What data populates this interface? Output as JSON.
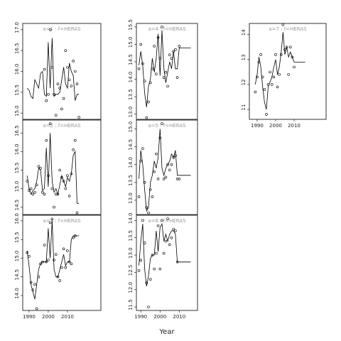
{
  "chart_data": [
    {
      "type": "line",
      "title": "a=1 : f=HERAS",
      "x": [
        1989,
        1990,
        1991,
        1992,
        1993,
        1994,
        1995,
        1996,
        1997,
        1998,
        1999,
        2000,
        2001,
        2002,
        2003,
        2004,
        2005,
        2006,
        2007,
        2008,
        2009,
        2010,
        2011,
        2012,
        2013,
        2014,
        2015,
        2016
      ],
      "xlim": [
        1986.7,
        2027.4
      ],
      "ylim": [
        14.85,
        17.15
      ],
      "yticks": [
        {
          "value": 15,
          "label": "15.0"
        },
        {
          "value": 15.5,
          "label": "15.5"
        },
        {
          "value": 16,
          "label": "16.0"
        },
        {
          "value": 16.5,
          "label": "16.5"
        },
        {
          "value": 17,
          "label": "17.0"
        }
      ],
      "series": [
        {
          "mode": "markers",
          "color": "#000000",
          "values": [
            null,
            null,
            null,
            null,
            null,
            null,
            null,
            null,
            null,
            16.05,
            15.3,
            15.45,
            17.0,
            16.1,
            15.45,
            14.95,
            15.7,
            15.6,
            15.1,
            15.35,
            16.5,
            16.1,
            15.8,
            15.65,
            16.25,
            16.0,
            15.7,
            14.9
          ]
        },
        {
          "mode": "lines",
          "color": "#000000",
          "values": [
            15.6,
            15.55,
            15.4,
            15.35,
            15.8,
            15.7,
            15.6,
            15.95,
            16.0,
            15.45,
            15.4,
            16.7,
            15.6,
            16.8,
            15.4,
            15.45,
            15.45,
            15.5,
            15.8,
            16.1,
            15.7,
            15.6,
            16.2,
            16.0,
            15.9,
            15.3,
            15.45,
            15.45
          ]
        }
      ]
    },
    {
      "type": "line",
      "title": "a=2 : f=HERAS",
      "x": [
        1989,
        1990,
        1991,
        1992,
        1993,
        1994,
        1995,
        1996,
        1997,
        1998,
        1999,
        2000,
        2001,
        2002,
        2003,
        2004,
        2005,
        2006,
        2007,
        2008,
        2009,
        2010,
        2011,
        2012,
        2013,
        2014,
        2015,
        2016
      ],
      "xlim": [
        1986.7,
        2027.4
      ],
      "ylim": [
        14.3,
        16.85
      ],
      "yticks": [
        {
          "value": 14.5,
          "label": "14.5"
        },
        {
          "value": 15,
          "label": "15.0"
        },
        {
          "value": 15.5,
          "label": "15.5"
        },
        {
          "value": 16,
          "label": "16.0"
        },
        {
          "value": 16.5,
          "label": "16.5"
        }
      ],
      "series": [
        {
          "mode": "markers",
          "color": "#000000",
          "values": [
            15.2,
            14.95,
            15.0,
            14.85,
            14.9,
            15.1,
            15.6,
            15.55,
            14.9,
            14.85,
            16.3,
            15.35,
            16.75,
            15.0,
            14.5,
            14.85,
            14.85,
            15.5,
            15.3,
            15.2,
            15.0,
            15.35,
            14.8,
            15.4,
            16.05,
            16.3,
            14.35,
            null
          ]
        },
        {
          "mode": "lines",
          "color": "#000000",
          "values": [
            15.35,
            15.0,
            14.85,
            14.95,
            15.0,
            15.2,
            15.55,
            15.5,
            14.95,
            15.0,
            16.1,
            15.05,
            16.5,
            15.2,
            14.9,
            15.0,
            14.85,
            15.1,
            15.35,
            15.2,
            15.05,
            15.3,
            15.2,
            15.4,
            15.9,
            16.0,
            14.6,
            14.6
          ]
        }
      ]
    },
    {
      "type": "line",
      "title": "a=3 : f=HERAS",
      "x": [
        1989,
        1990,
        1991,
        1992,
        1993,
        1994,
        1995,
        1996,
        1997,
        1998,
        1999,
        2000,
        2001,
        2002,
        2003,
        2004,
        2005,
        2006,
        2007,
        2008,
        2009,
        2010,
        2011,
        2012,
        2013,
        2014,
        2015,
        2016
      ],
      "xlim": [
        1986.7,
        2027.4
      ],
      "xticks": [
        1990,
        2000,
        2010
      ],
      "ylim": [
        13.6,
        16.15
      ],
      "yticks": [
        {
          "value": 14,
          "label": "14.0"
        },
        {
          "value": 14.5,
          "label": "14.5"
        },
        {
          "value": 15,
          "label": "15.0"
        },
        {
          "value": 15.5,
          "label": "15.5"
        },
        {
          "value": 16,
          "label": "16.0"
        }
      ],
      "series": [
        {
          "mode": "markers",
          "color": "#000000",
          "values": [
            15.15,
            15.05,
            14.35,
            14.15,
            14.3,
            13.65,
            14.5,
            14.85,
            14.9,
            15.35,
            14.9,
            14.95,
            15.95,
            16.05,
            14.95,
            15.1,
            14.5,
            14.4,
            14.75,
            15.25,
            14.75,
            15.2,
            14.9,
            14.85,
            15.55,
            15.6,
            null,
            null
          ]
        },
        {
          "mode": "lines",
          "color": "#000000",
          "values": [
            15.2,
            14.8,
            14.3,
            14.1,
            13.9,
            14.3,
            14.7,
            14.85,
            14.9,
            14.9,
            14.9,
            15.8,
            15.0,
            16.0,
            14.7,
            14.5,
            14.5,
            14.7,
            14.9,
            15.1,
            14.8,
            14.9,
            14.9,
            15.5,
            15.6,
            15.6,
            15.6,
            15.6
          ]
        }
      ]
    },
    {
      "type": "line",
      "title": "a=4 : f=HERAS",
      "x": [
        1989,
        1990,
        1991,
        1992,
        1993,
        1994,
        1995,
        1996,
        1997,
        1998,
        1999,
        2000,
        2001,
        2002,
        2003,
        2004,
        2005,
        2006,
        2007,
        2008,
        2009,
        2010,
        2011,
        2012,
        2013,
        2014,
        2015,
        2016
      ],
      "xlim": [
        1987.7,
        2019.5
      ],
      "ylim": [
        12.85,
        15.6
      ],
      "yticks": [
        {
          "value": 13,
          "label": "13.0"
        },
        {
          "value": 13.5,
          "label": "13.5"
        },
        {
          "value": 14,
          "label": "14.0"
        },
        {
          "value": 14.5,
          "label": "14.5"
        },
        {
          "value": 15,
          "label": "15.0"
        },
        {
          "value": 15.5,
          "label": "15.5"
        }
      ],
      "series": [
        {
          "mode": "markers",
          "color": "#000000",
          "values": [
            14.3,
            15.0,
            14.45,
            13.95,
            12.9,
            13.35,
            13.9,
            14.3,
            14.95,
            14.15,
            15.2,
            14.6,
            15.5,
            14.05,
            14.2,
            13.8,
            14.7,
            14.6,
            14.8,
            14.85,
            14.05,
            14.95,
            null,
            null,
            null,
            null,
            null,
            null
          ]
        },
        {
          "mode": "lines",
          "color": "#000000",
          "values": [
            14.4,
            14.8,
            14.4,
            13.6,
            13.2,
            13.8,
            14.0,
            14.6,
            14.2,
            14.6,
            15.3,
            14.1,
            15.4,
            14.3,
            13.9,
            14.2,
            14.5,
            14.3,
            14.8,
            14.3,
            14.3,
            14.9,
            14.9,
            14.9,
            14.9,
            14.9,
            14.9,
            14.9
          ]
        }
      ]
    },
    {
      "type": "line",
      "title": "a=5 : f=HERAS",
      "x": [
        1989,
        1990,
        1991,
        1992,
        1993,
        1994,
        1995,
        1996,
        1997,
        1998,
        1999,
        2000,
        2001,
        2002,
        2003,
        2004,
        2005,
        2006,
        2007,
        2008,
        2009,
        2010,
        2011,
        2012,
        2013,
        2014,
        2015,
        2016
      ],
      "xlim": [
        1987.7,
        2019.5
      ],
      "ylim": [
        12.6,
        15.25
      ],
      "yticks": [
        {
          "value": 13,
          "label": "13.0"
        },
        {
          "value": 13.5,
          "label": "13.5"
        },
        {
          "value": 14,
          "label": "14.0"
        },
        {
          "value": 14.5,
          "label": "14.5"
        },
        {
          "value": 15,
          "label": "15.0"
        }
      ],
      "series": [
        {
          "mode": "markers",
          "color": "#000000",
          "values": [
            13.1,
            14.1,
            14.45,
            13.5,
            12.8,
            12.65,
            13.3,
            13.1,
            13.8,
            14.3,
            13.6,
            14.75,
            15.15,
            13.6,
            13.65,
            14.0,
            13.85,
            14.0,
            14.2,
            14.25,
            13.6,
            13.6,
            null,
            null,
            null,
            null,
            null,
            null
          ]
        },
        {
          "mode": "lines",
          "color": "#000000",
          "values": [
            13.6,
            14.4,
            14.0,
            13.3,
            12.7,
            12.8,
            13.5,
            13.7,
            14.1,
            13.9,
            14.2,
            15.0,
            13.9,
            13.7,
            13.9,
            14.0,
            14.1,
            14.3,
            14.2,
            14.4,
            13.7,
            13.7,
            13.7,
            13.7,
            13.7,
            13.7,
            13.7,
            13.7
          ]
        }
      ]
    },
    {
      "type": "line",
      "title": "a=6 : f=HERAS",
      "x": [
        1989,
        1990,
        1991,
        1992,
        1993,
        1994,
        1995,
        1996,
        1997,
        1998,
        1999,
        2000,
        2001,
        2002,
        2003,
        2004,
        2005,
        2006,
        2007,
        2008,
        2009,
        2010,
        2011,
        2012,
        2013,
        2014,
        2015,
        2016
      ],
      "xlim": [
        1987.7,
        2019.5
      ],
      "xticks": [
        1990,
        2000,
        2010
      ],
      "xlabel": "Year",
      "ylim": [
        11.4,
        14.15
      ],
      "yticks": [
        {
          "value": 11.5,
          "label": "11.5"
        },
        {
          "value": 12,
          "label": "12.0"
        },
        {
          "value": 12.5,
          "label": "12.5"
        },
        {
          "value": 13,
          "label": "13.0"
        },
        {
          "value": 13.5,
          "label": "13.5"
        },
        {
          "value": 14,
          "label": "14.0"
        }
      ],
      "series": [
        {
          "mode": "markers",
          "color": "#000000",
          "values": [
            12.55,
            12.85,
            14.0,
            13.35,
            12.2,
            11.5,
            12.3,
            13.0,
            12.6,
            13.05,
            13.85,
            12.6,
            14.0,
            13.05,
            13.4,
            14.05,
            13.3,
            13.5,
            13.75,
            13.7,
            12.8,
            null,
            null,
            null,
            null,
            null,
            null,
            null
          ]
        },
        {
          "mode": "lines",
          "color": "#000000",
          "values": [
            12.7,
            13.4,
            13.9,
            12.6,
            12.1,
            12.4,
            12.9,
            13.0,
            13.0,
            13.7,
            13.1,
            13.8,
            13.9,
            13.4,
            13.6,
            13.4,
            13.6,
            13.7,
            13.7,
            13.6,
            12.8,
            12.8,
            12.8,
            12.8,
            12.8,
            12.8,
            12.8,
            12.8
          ]
        }
      ]
    },
    {
      "type": "line",
      "title": "a=7 : f=HERAS",
      "x": [
        1989,
        1990,
        1991,
        1992,
        1993,
        1994,
        1995,
        1996,
        1997,
        1998,
        1999,
        2000,
        2001,
        2002,
        2003,
        2004,
        2005,
        2006,
        2007,
        2008,
        2009,
        2010,
        2011,
        2012,
        2013,
        2014,
        2015,
        2016
      ],
      "xlim": [
        1985.8,
        2027.3
      ],
      "xticks": [
        1990,
        2000,
        2010
      ],
      "ylim": [
        10.6,
        14.45
      ],
      "yticks": [
        11,
        12,
        13,
        14
      ],
      "series": [
        {
          "mode": "markers",
          "color": "#000000",
          "values": [
            11.7,
            12.3,
            12.9,
            13.2,
            12.3,
            11.8,
            10.8,
            12.0,
            12.5,
            12.0,
            12.3,
            13.2,
            11.9,
            12.4,
            13.2,
            14.4,
            13.4,
            13.5,
            12.4,
            13.5,
            13.1,
            12.7,
            null,
            null,
            null,
            null,
            null,
            null
          ]
        },
        {
          "mode": "lines",
          "color": "#000000",
          "values": [
            12.0,
            12.4,
            13.1,
            12.7,
            11.9,
            11.3,
            11.0,
            11.9,
            12.1,
            12.3,
            12.7,
            13.0,
            12.4,
            12.7,
            13.3,
            14.1,
            13.2,
            13.5,
            13.1,
            13.3,
            13.1,
            12.9,
            12.9,
            12.9,
            12.9,
            12.9,
            12.9,
            12.9
          ]
        }
      ]
    }
  ]
}
